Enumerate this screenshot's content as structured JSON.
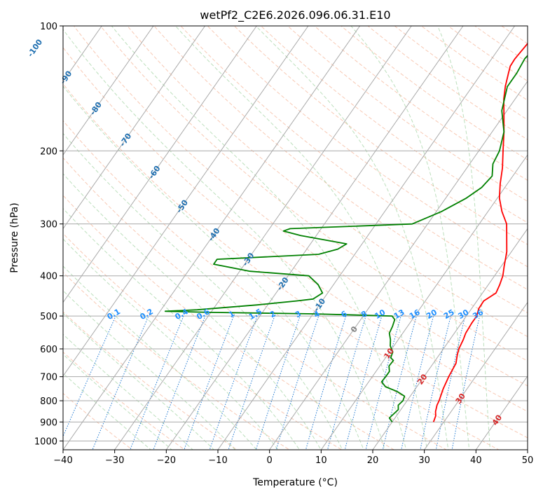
{
  "chart_data": {
    "type": "line",
    "title": "wetPf2_C2E6.2026.096.06.31.E10",
    "xlabel": "Temperature (°C)",
    "ylabel": "Pressure (hPa)",
    "xlim": [
      -40,
      50
    ],
    "ylim": [
      1050,
      100
    ],
    "x_ticks": [
      "−40",
      "−30",
      "−20",
      "−10",
      "0",
      "10",
      "20",
      "30",
      "40",
      "50"
    ],
    "y_ticks": [
      {
        "p": 100,
        "label": "100"
      },
      {
        "p": 200,
        "label": "200"
      },
      {
        "p": 300,
        "label": "300"
      },
      {
        "p": 400,
        "label": "400"
      },
      {
        "p": 500,
        "label": "500"
      },
      {
        "p": 600,
        "label": "600"
      },
      {
        "p": 700,
        "label": "700"
      },
      {
        "p": 800,
        "label": "800"
      },
      {
        "p": 900,
        "label": "900"
      },
      {
        "p": 1000,
        "label": "1000"
      }
    ],
    "colors": {
      "temperature": "#ff0000",
      "dewpoint": "#008000",
      "isotherm": "#aaaaaa",
      "dry_adiabat": "#f4a582",
      "moist_adiabat": "#8fc98f",
      "mixing_ratio": "#1f78d1",
      "isotherm_label": "#1f6fb0",
      "pos_label": "#d62728",
      "zero_label": "#808080",
      "mixing_label": "#1e8fff"
    },
    "series": [
      {
        "name": "Temperature",
        "color": "#ff0000",
        "points": [
          [
            900,
            28
          ],
          [
            870,
            27.6
          ],
          [
            850,
            27
          ],
          [
            820,
            26.4
          ],
          [
            800,
            26.2
          ],
          [
            750,
            25.4
          ],
          [
            700,
            24.8
          ],
          [
            650,
            24.4
          ],
          [
            620,
            23.5
          ],
          [
            600,
            23
          ],
          [
            570,
            22.6
          ],
          [
            550,
            22.2
          ],
          [
            520,
            22
          ],
          [
            500,
            22
          ],
          [
            480,
            21.4
          ],
          [
            460,
            21.3
          ],
          [
            440,
            22.6
          ],
          [
            420,
            22.2
          ],
          [
            400,
            21.6
          ],
          [
            380,
            20.6
          ],
          [
            350,
            19.1
          ],
          [
            320,
            16.9
          ],
          [
            300,
            15.3
          ],
          [
            280,
            12.7
          ],
          [
            260,
            10.4
          ],
          [
            240,
            8.6
          ],
          [
            220,
            6.9
          ],
          [
            200,
            4.7
          ],
          [
            180,
            2.3
          ],
          [
            160,
            -0.6
          ],
          [
            150,
            -2.2
          ],
          [
            140,
            -3.6
          ],
          [
            130,
            -4.8
          ],
          [
            125,
            -5.4
          ],
          [
            120,
            -5.5
          ],
          [
            110,
            -5.1
          ],
          [
            105,
            -4.7
          ],
          [
            100,
            -3.1
          ]
        ]
      },
      {
        "name": "Dewpoint",
        "color": "#008000",
        "points": [
          [
            900,
            20
          ],
          [
            880,
            18.9
          ],
          [
            860,
            19.2
          ],
          [
            840,
            19.5
          ],
          [
            820,
            18.9
          ],
          [
            800,
            19.2
          ],
          [
            780,
            18.9
          ],
          [
            760,
            16.8
          ],
          [
            740,
            13.9
          ],
          [
            720,
            12.5
          ],
          [
            700,
            12.6
          ],
          [
            680,
            12.6
          ],
          [
            660,
            11.8
          ],
          [
            640,
            11.9
          ],
          [
            630,
            11
          ],
          [
            610,
            10.6
          ],
          [
            590,
            9.3
          ],
          [
            570,
            8.5
          ],
          [
            550,
            7.4
          ],
          [
            530,
            7.1
          ],
          [
            510,
            6.6
          ],
          [
            500,
            5.6
          ],
          [
            494,
            -10
          ],
          [
            490,
            -30
          ],
          [
            487,
            -39
          ],
          [
            483,
            -33
          ],
          [
            470,
            -22
          ],
          [
            460,
            -15
          ],
          [
            455,
            -12
          ],
          [
            440,
            -11
          ],
          [
            420,
            -13
          ],
          [
            400,
            -16
          ],
          [
            390,
            -28
          ],
          [
            375,
            -36
          ],
          [
            365,
            -36
          ],
          [
            355,
            -17
          ],
          [
            345,
            -14
          ],
          [
            335,
            -13
          ],
          [
            320,
            -23
          ],
          [
            312,
            -27
          ],
          [
            308,
            -26
          ],
          [
            300,
            -3
          ],
          [
            280,
            1
          ],
          [
            260,
            4
          ],
          [
            245,
            5.5
          ],
          [
            230,
            6
          ],
          [
            215,
            4.5
          ],
          [
            200,
            4
          ],
          [
            180,
            2.3
          ],
          [
            160,
            -1
          ],
          [
            140,
            -3.2
          ],
          [
            130,
            -3.2
          ],
          [
            120,
            -3.6
          ],
          [
            110,
            -2.9
          ],
          [
            100,
            -1.2
          ]
        ]
      }
    ],
    "labels": {
      "isotherms": [
        {
          "t": -100,
          "p": 113,
          "text": "-100"
        },
        {
          "t": -90,
          "p": 133,
          "text": "-90"
        },
        {
          "t": -80,
          "p": 158,
          "text": "-80"
        },
        {
          "t": -70,
          "p": 188,
          "text": "-70"
        },
        {
          "t": -60,
          "p": 225,
          "text": "-60"
        },
        {
          "t": -50,
          "p": 272,
          "text": "-50"
        },
        {
          "t": -40,
          "p": 318,
          "text": "-40"
        },
        {
          "t": -30,
          "p": 365,
          "text": "-30"
        },
        {
          "t": -20,
          "p": 418,
          "text": "-20"
        },
        {
          "t": -10,
          "p": 470,
          "text": "-10"
        },
        {
          "t": 0,
          "p": 538,
          "text": "0"
        },
        {
          "t": 10,
          "p": 615,
          "text": "10"
        },
        {
          "t": 20,
          "p": 710,
          "text": "20"
        },
        {
          "t": 30,
          "p": 790,
          "text": "30"
        },
        {
          "t": 40,
          "p": 890,
          "text": "40"
        }
      ],
      "mixing_ratios": [
        {
          "w": 0.1,
          "text": "0.1"
        },
        {
          "w": 0.2,
          "text": "0.2"
        },
        {
          "w": 0.4,
          "text": "0.4"
        },
        {
          "w": 0.6,
          "text": "0.6"
        },
        {
          "w": 1,
          "text": "1"
        },
        {
          "w": 1.5,
          "text": "1.5"
        },
        {
          "w": 2,
          "text": "2"
        },
        {
          "w": 3,
          "text": "3"
        },
        {
          "w": 4,
          "text": "4"
        },
        {
          "w": 6,
          "text": "6"
        },
        {
          "w": 8,
          "text": "8"
        },
        {
          "w": 10,
          "text": "10"
        },
        {
          "w": 13,
          "text": "13"
        },
        {
          "w": 16,
          "text": "16"
        },
        {
          "w": 20,
          "text": "20"
        },
        {
          "w": 25,
          "text": "25"
        },
        {
          "w": 30,
          "text": "30"
        },
        {
          "w": 36,
          "text": "36"
        }
      ]
    }
  }
}
